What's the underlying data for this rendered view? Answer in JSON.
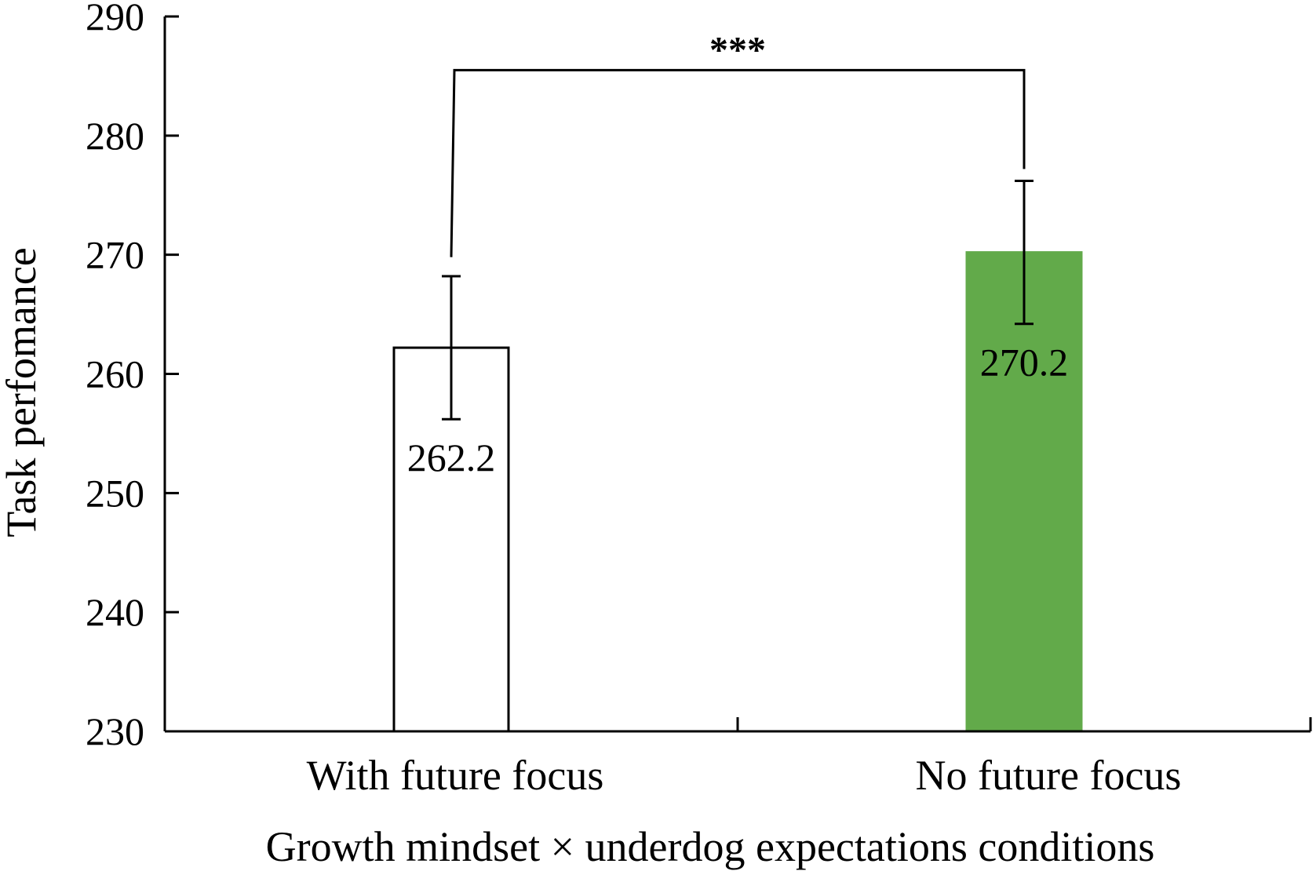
{
  "chart_data": {
    "type": "bar",
    "categories": [
      "With future focus",
      "No future focus"
    ],
    "values": [
      262.2,
      270.2
    ],
    "value_labels": [
      "262.2",
      "270.2"
    ],
    "error_bars": [
      {
        "lower": 256.2,
        "upper": 268.2
      },
      {
        "lower": 264.2,
        "upper": 276.2
      }
    ],
    "bar_colors": [
      "#ffffff",
      "#62aa4a"
    ],
    "bar_edge_colors": [
      "#000000",
      "#62aa4a"
    ],
    "title": "",
    "xlabel": "Growth mindset × underdog expectations conditions",
    "ylabel": "Task perfomance",
    "ylim": [
      230,
      290
    ],
    "yticks": [
      230,
      240,
      250,
      260,
      270,
      280,
      290
    ],
    "grid": false,
    "legend": "none",
    "significance": {
      "label": "***",
      "between": [
        0,
        1
      ],
      "bracket_level": 285.5,
      "left_drop_to": 269.8,
      "right_drop_to": 277.2
    }
  }
}
